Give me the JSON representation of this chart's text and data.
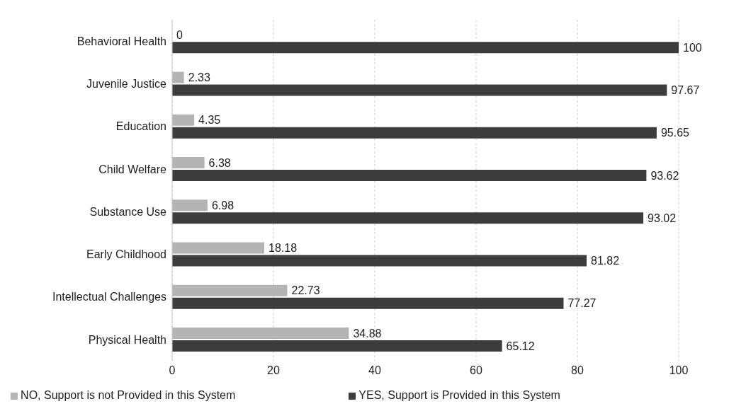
{
  "chart_data": {
    "type": "bar",
    "orientation": "horizontal",
    "categories": [
      "Behavioral Health",
      "Juvenile Justice",
      "Education",
      "Child Welfare",
      "Substance Use",
      "Early Childhood",
      "Intellectual Challenges",
      "Physical Health"
    ],
    "series": [
      {
        "name": "NO, Support is not Provided in this System",
        "color": "#b4b4b4",
        "values": [
          0,
          2.33,
          4.35,
          6.38,
          6.98,
          18.18,
          22.73,
          34.88
        ]
      },
      {
        "name": "YES, Support is Provided in this System",
        "color": "#3c3c3c",
        "values": [
          100,
          97.67,
          95.65,
          93.62,
          93.02,
          81.82,
          77.27,
          65.12
        ]
      }
    ],
    "xlim": [
      0,
      100
    ],
    "xticks": [
      0,
      20,
      40,
      60,
      80,
      100
    ],
    "grid": "x",
    "legend": "bottom",
    "data_labels": true
  }
}
